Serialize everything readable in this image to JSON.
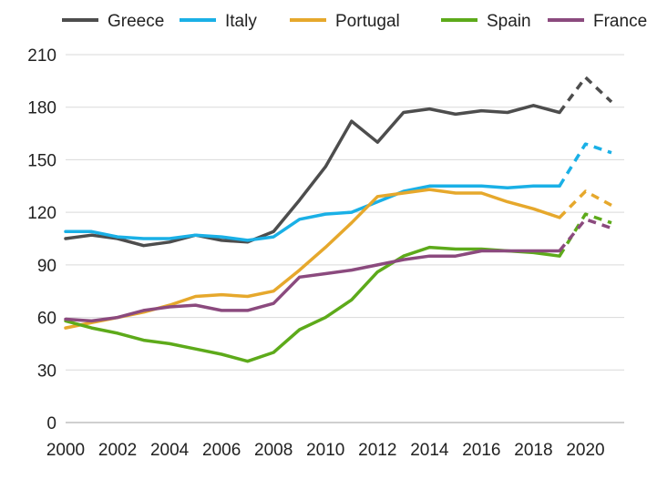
{
  "chart_data": {
    "type": "line",
    "title": "",
    "xlabel": "",
    "ylabel": "",
    "ylim": [
      0,
      210
    ],
    "xlim": [
      2000,
      2021
    ],
    "yticks": [
      0,
      30,
      60,
      90,
      120,
      150,
      180,
      210
    ],
    "xticks": [
      2000,
      2002,
      2004,
      2006,
      2008,
      2010,
      2012,
      2014,
      2016,
      2018,
      2020
    ],
    "grid": "horizontal",
    "legend_position": "top",
    "projection_start": 2019,
    "x": [
      2000,
      2001,
      2002,
      2003,
      2004,
      2005,
      2006,
      2007,
      2008,
      2009,
      2010,
      2011,
      2012,
      2013,
      2014,
      2015,
      2016,
      2017,
      2018,
      2019,
      2020,
      2021
    ],
    "series": [
      {
        "name": "Greece",
        "color": "#4d4d4d",
        "values": [
          105,
          107,
          105,
          101,
          103,
          107,
          104,
          103,
          109,
          127,
          146,
          172,
          160,
          177,
          179,
          176,
          178,
          177,
          181,
          177,
          197,
          183
        ]
      },
      {
        "name": "Italy",
        "color": "#1ab0e6",
        "values": [
          109,
          109,
          106,
          105,
          105,
          107,
          106,
          104,
          106,
          116,
          119,
          120,
          126,
          132,
          135,
          135,
          135,
          134,
          135,
          135,
          159,
          154
        ]
      },
      {
        "name": "Portugal",
        "color": "#e6a82c",
        "values": [
          54,
          57,
          60,
          63,
          67,
          72,
          73,
          72,
          75,
          87,
          100,
          114,
          129,
          131,
          133,
          131,
          131,
          126,
          122,
          117,
          132,
          124
        ]
      },
      {
        "name": "Spain",
        "color": "#5daa1a",
        "values": [
          58,
          54,
          51,
          47,
          45,
          42,
          39,
          35,
          40,
          53,
          60,
          70,
          86,
          95,
          100,
          99,
          99,
          98,
          97,
          95,
          119,
          114
        ]
      },
      {
        "name": "France",
        "color": "#8b4a7e",
        "values": [
          59,
          58,
          60,
          64,
          66,
          67,
          64,
          64,
          68,
          83,
          85,
          87,
          90,
          93,
          95,
          95,
          98,
          98,
          98,
          98,
          116,
          111
        ]
      }
    ]
  }
}
